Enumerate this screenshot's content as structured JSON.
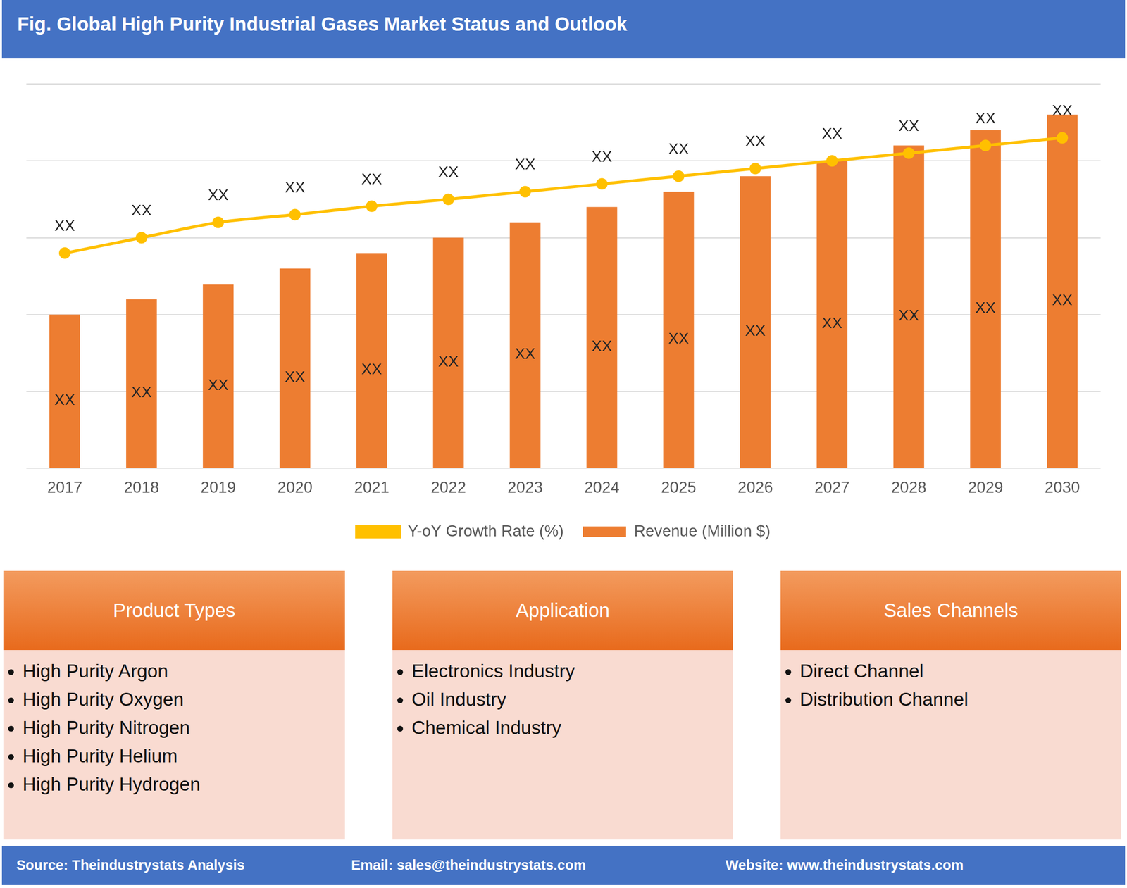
{
  "header": {
    "title": "Fig. Global High Purity Industrial Gases Market Status and Outlook"
  },
  "chart_data": {
    "type": "bar",
    "categories": [
      "2017",
      "2018",
      "2019",
      "2020",
      "2021",
      "2022",
      "2023",
      "2024",
      "2025",
      "2026",
      "2027",
      "2028",
      "2029",
      "2030"
    ],
    "ylim": [
      0,
      5
    ],
    "yticks": [
      0,
      1,
      2,
      3,
      4,
      5
    ],
    "grid": true,
    "tick_labels": "x",
    "legend": "bottom",
    "data_labels": true,
    "series": [
      {
        "name": "Revenue (Million $)",
        "type": "bar",
        "color": "#ed7d31",
        "values": [
          2.0,
          2.2,
          2.39,
          2.6,
          2.8,
          3.0,
          3.2,
          3.4,
          3.6,
          3.8,
          4.0,
          4.2,
          4.4,
          4.6
        ],
        "value_labels": [
          "XX",
          "XX",
          "XX",
          "XX",
          "XX",
          "XX",
          "XX",
          "XX",
          "XX",
          "XX",
          "XX",
          "XX",
          "XX",
          "XX"
        ]
      },
      {
        "name": "Y-oY Growth Rate (%)",
        "type": "line",
        "color": "#ffc000",
        "marker": "circle",
        "values": [
          2.8,
          3.0,
          3.2,
          3.3,
          3.41,
          3.5,
          3.6,
          3.7,
          3.8,
          3.9,
          4.0,
          4.1,
          4.2,
          4.3
        ],
        "value_labels": [
          "XX",
          "XX",
          "XX",
          "XX",
          "XX",
          "XX",
          "XX",
          "XX",
          "XX",
          "XX",
          "XX",
          "XX",
          "XX",
          "XX"
        ]
      }
    ]
  },
  "panels": [
    {
      "title": "Product Types",
      "items": [
        "High Purity Argon",
        "High Purity Oxygen",
        "High Purity Nitrogen",
        "High Purity Helium",
        "High Purity Hydrogen"
      ]
    },
    {
      "title": "Application",
      "items": [
        "Electronics Industry",
        "Oil Industry",
        "Chemical Industry"
      ]
    },
    {
      "title": "Sales Channels",
      "items": [
        "Direct Channel",
        "Distribution Channel"
      ]
    }
  ],
  "footer": {
    "source": "Source: Theindustrystats Analysis",
    "email": "Email: sales@theindustrystats.com",
    "website": "Website: www.theindustrystats.com"
  }
}
